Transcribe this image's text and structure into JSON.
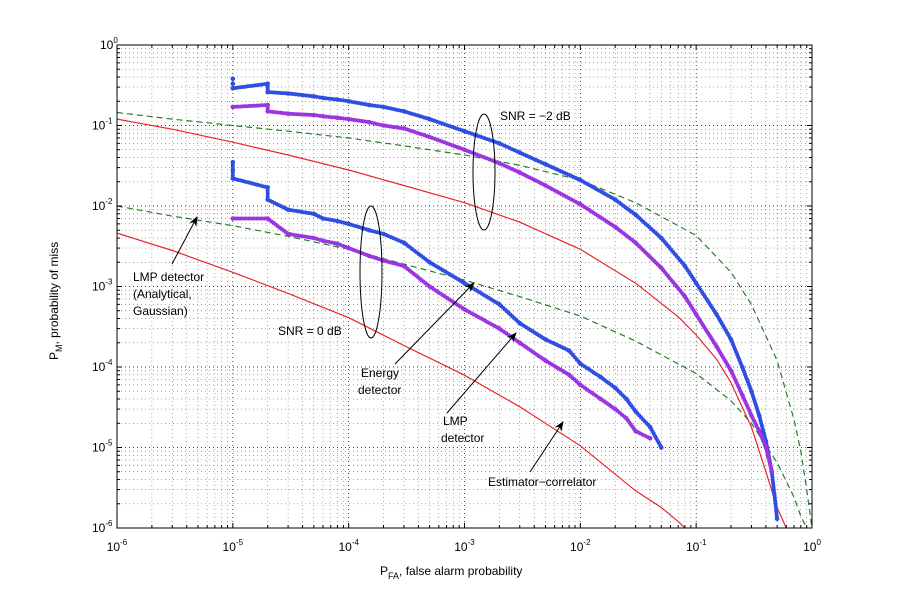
{
  "chart_data": {
    "type": "scatter",
    "title": "",
    "xlabel": "P",
    "xlabel_sub": "FA",
    "xlabel_rest": ", false alarm probability",
    "ylabel": "P",
    "ylabel_sub": "M",
    "ylabel_rest": ", probability of miss",
    "xscale": "log",
    "yscale": "log",
    "xlim": [
      1e-06,
      1
    ],
    "ylim": [
      1e-06,
      1
    ],
    "grid": "dotted, major and minor",
    "x_ticks": [
      {
        "base": "10",
        "exp": "-6",
        "value": 1e-06
      },
      {
        "base": "10",
        "exp": "-5",
        "value": 1e-05
      },
      {
        "base": "10",
        "exp": "-4",
        "value": 0.0001
      },
      {
        "base": "10",
        "exp": "-3",
        "value": 0.001
      },
      {
        "base": "10",
        "exp": "-2",
        "value": 0.01
      },
      {
        "base": "10",
        "exp": "-1",
        "value": 0.1
      },
      {
        "base": "10",
        "exp": "0",
        "value": 1
      }
    ],
    "y_ticks": [
      {
        "base": "10",
        "exp": "-6",
        "value": 1e-06
      },
      {
        "base": "10",
        "exp": "-5",
        "value": 1e-05
      },
      {
        "base": "10",
        "exp": "-4",
        "value": 0.0001
      },
      {
        "base": "10",
        "exp": "-3",
        "value": 0.001
      },
      {
        "base": "10",
        "exp": "-2",
        "value": 0.01
      },
      {
        "base": "10",
        "exp": "-1",
        "value": 0.1
      },
      {
        "base": "10",
        "exp": "0",
        "value": 1
      }
    ],
    "lines": [
      {
        "name": "Estimator-correlator, SNR = -2 dB",
        "style": "solid",
        "color": "#e8262d",
        "x": [
          1e-06,
          3e-06,
          1e-05,
          3e-05,
          0.0001,
          0.0003,
          0.001,
          0.003,
          0.01,
          0.03,
          0.07,
          0.1,
          0.15,
          0.2,
          0.3,
          0.4,
          0.5,
          0.6
        ],
        "y": [
          0.12,
          0.09,
          0.062,
          0.043,
          0.028,
          0.018,
          0.011,
          0.0063,
          0.0029,
          0.0011,
          0.00042,
          0.00025,
          0.000125,
          6.4e-05,
          1.8e-05,
          5e-06,
          1.8e-06,
          1e-06
        ]
      },
      {
        "name": "Estimator-correlator, SNR = 0 dB",
        "style": "solid",
        "color": "#e8262d",
        "x": [
          1e-06,
          3e-06,
          1e-05,
          3e-05,
          0.0001,
          0.0003,
          0.001,
          0.003,
          0.01,
          0.03,
          0.05,
          0.07,
          0.08
        ],
        "y": [
          0.0046,
          0.0028,
          0.0015,
          0.00082,
          0.00041,
          0.000185,
          7.9e-05,
          3.2e-05,
          1.05e-05,
          2.9e-06,
          1.8e-06,
          1.2e-06,
          1e-06
        ]
      },
      {
        "name": "LMP detector (Analytical, Gaussian), SNR = -2 dB",
        "style": "dashed",
        "color": "#2a7d2a",
        "x": [
          1e-06,
          3e-06,
          1e-05,
          3e-05,
          0.0001,
          0.0003,
          0.001,
          0.003,
          0.01,
          0.03,
          0.1,
          0.2,
          0.3,
          0.5,
          0.7,
          0.8,
          0.9,
          1.0
        ],
        "y": [
          0.145,
          0.12,
          0.1,
          0.085,
          0.07,
          0.056,
          0.043,
          0.032,
          0.021,
          0.011,
          0.0043,
          0.0015,
          0.0006,
          0.00012,
          2.2e-05,
          9e-06,
          3e-06,
          1e-06
        ]
      },
      {
        "name": "LMP detector (Analytical, Gaussian), SNR = 0 dB",
        "style": "dashed",
        "color": "#2a7d2a",
        "x": [
          1e-06,
          3e-06,
          1e-05,
          3e-05,
          0.0001,
          0.0003,
          0.001,
          0.003,
          0.01,
          0.03,
          0.1,
          0.2,
          0.3,
          0.5,
          0.6,
          0.7,
          0.8,
          0.9
        ],
        "y": [
          0.01,
          0.0075,
          0.0057,
          0.0042,
          0.0029,
          0.0019,
          0.0012,
          0.00075,
          0.00043,
          0.00021,
          8.3e-05,
          3.8e-05,
          2e-05,
          6.5e-06,
          3.8e-06,
          2.4e-06,
          1.4e-06,
          1e-06
        ]
      }
    ],
    "series": [
      {
        "name": "Energy detector, SNR = -2 dB",
        "marker": "dot",
        "color": "#2f4fe0",
        "x": [
          1e-05,
          1e-05,
          1e-05,
          2e-05,
          2e-05,
          3e-05,
          5e-05,
          6e-05,
          8e-05,
          0.0001,
          0.00015,
          0.0002,
          0.0003,
          0.0005,
          0.001,
          0.002,
          0.003,
          0.005,
          0.01,
          0.02,
          0.03,
          0.05,
          0.08,
          0.1,
          0.15,
          0.2,
          0.25,
          0.3,
          0.35,
          0.4,
          0.45,
          0.5
        ],
        "y": [
          0.38,
          0.33,
          0.29,
          0.33,
          0.26,
          0.25,
          0.23,
          0.22,
          0.21,
          0.2,
          0.18,
          0.17,
          0.15,
          0.12,
          0.085,
          0.06,
          0.046,
          0.033,
          0.021,
          0.012,
          0.0078,
          0.004,
          0.0018,
          0.0011,
          0.00045,
          0.00022,
          0.0001,
          5e-05,
          2.5e-05,
          1.2e-05,
          5e-06,
          1.3e-06
        ]
      },
      {
        "name": "LMP detector, SNR = -2 dB",
        "marker": "dot",
        "color": "#9b35e0",
        "x": [
          1e-05,
          2e-05,
          2e-05,
          3e-05,
          5e-05,
          6e-05,
          8e-05,
          0.0001,
          0.00015,
          0.0002,
          0.0003,
          0.0005,
          0.001,
          0.002,
          0.003,
          0.005,
          0.01,
          0.02,
          0.03,
          0.05,
          0.08,
          0.1,
          0.15,
          0.2,
          0.25,
          0.3,
          0.35,
          0.4,
          0.45
        ],
        "y": [
          0.17,
          0.18,
          0.15,
          0.14,
          0.135,
          0.13,
          0.125,
          0.12,
          0.11,
          0.1,
          0.092,
          0.072,
          0.05,
          0.034,
          0.026,
          0.018,
          0.0105,
          0.0055,
          0.0035,
          0.0017,
          0.00075,
          0.00045,
          0.00018,
          9e-05,
          4.5e-05,
          2.5e-05,
          1.6e-05,
          1e-05,
          5e-06
        ]
      },
      {
        "name": "Energy detector, SNR = 0 dB",
        "marker": "dot",
        "color": "#2f4fe0",
        "x": [
          1e-05,
          1e-05,
          1e-05,
          2e-05,
          2e-05,
          3e-05,
          5e-05,
          6e-05,
          8e-05,
          0.0001,
          0.00015,
          0.0002,
          0.0003,
          0.0005,
          0.001,
          0.002,
          0.003,
          0.005,
          0.008,
          0.01,
          0.015,
          0.02,
          0.025,
          0.03,
          0.04,
          0.05
        ],
        "y": [
          0.035,
          0.028,
          0.022,
          0.017,
          0.012,
          0.009,
          0.008,
          0.007,
          0.0065,
          0.006,
          0.005,
          0.0045,
          0.0035,
          0.002,
          0.0011,
          0.0006,
          0.00035,
          0.00022,
          0.00016,
          0.00011,
          7.5e-05,
          5.5e-05,
          4e-05,
          2.8e-05,
          1.8e-05,
          1e-05
        ]
      },
      {
        "name": "LMP detector, SNR = 0 dB",
        "marker": "dot",
        "color": "#9b35e0",
        "x": [
          1e-05,
          2e-05,
          3e-05,
          5e-05,
          6e-05,
          8e-05,
          0.0001,
          0.00015,
          0.0002,
          0.0003,
          0.0005,
          0.001,
          0.002,
          0.003,
          0.005,
          0.008,
          0.01,
          0.015,
          0.02,
          0.025,
          0.03,
          0.04
        ],
        "y": [
          0.007,
          0.007,
          0.0045,
          0.004,
          0.0037,
          0.0034,
          0.003,
          0.0024,
          0.0021,
          0.0018,
          0.001,
          0.00052,
          0.0003,
          0.0002,
          0.00012,
          8e-05,
          6e-05,
          4e-05,
          3e-05,
          2.3e-05,
          1.6e-05,
          1.3e-05
        ]
      }
    ],
    "annotations": {
      "snr_m2": "SNR = −2 dB",
      "snr_0": "SNR = 0 dB",
      "lmp_analytical_1": "LMP detector",
      "lmp_analytical_2": "(Analytical,",
      "lmp_analytical_3": "Gaussian)",
      "energy_1": "Energy",
      "energy_2": "detector",
      "lmp_1": "LMP",
      "lmp_2": "detector",
      "est_corr": "Estimator−correlator"
    }
  }
}
